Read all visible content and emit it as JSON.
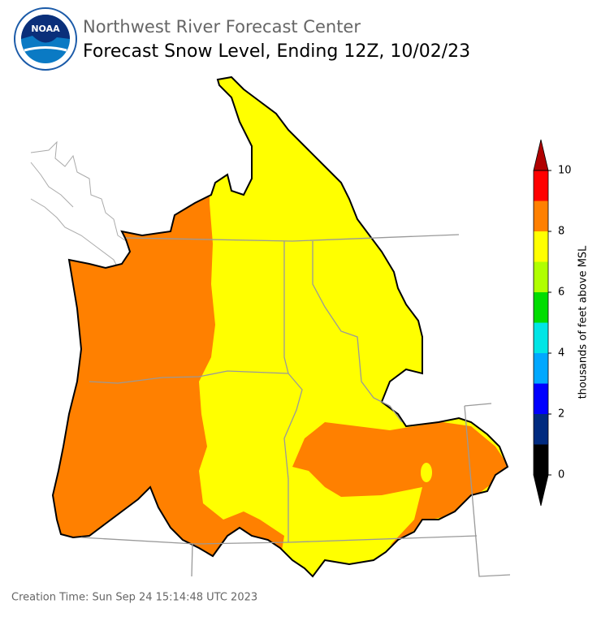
{
  "header": {
    "agency": "Northwest River Forecast Center",
    "title": "Forecast Snow Level, Ending 12Z, 10/02/23",
    "logo_text": "NOAA"
  },
  "colorbar": {
    "label": "thousands of feet above MSL",
    "lim": [
      0,
      10
    ],
    "ticks": [
      0,
      2,
      4,
      6,
      8,
      10
    ],
    "bins": [
      0,
      1,
      2,
      3,
      4,
      5,
      6,
      7,
      8,
      9,
      10
    ],
    "colors": [
      "#000000",
      "#002a7f",
      "#0000ff",
      "#00a8ff",
      "#00e5e5",
      "#00dd00",
      "#b0ff00",
      "#ffff00",
      "#ff8000",
      "#ff0000"
    ],
    "under_color": "#000000",
    "over_color": "#b00000"
  },
  "footer": {
    "creation_time": "Creation Time: Sun Sep 24 15:14:48 UTC 2023"
  }
}
